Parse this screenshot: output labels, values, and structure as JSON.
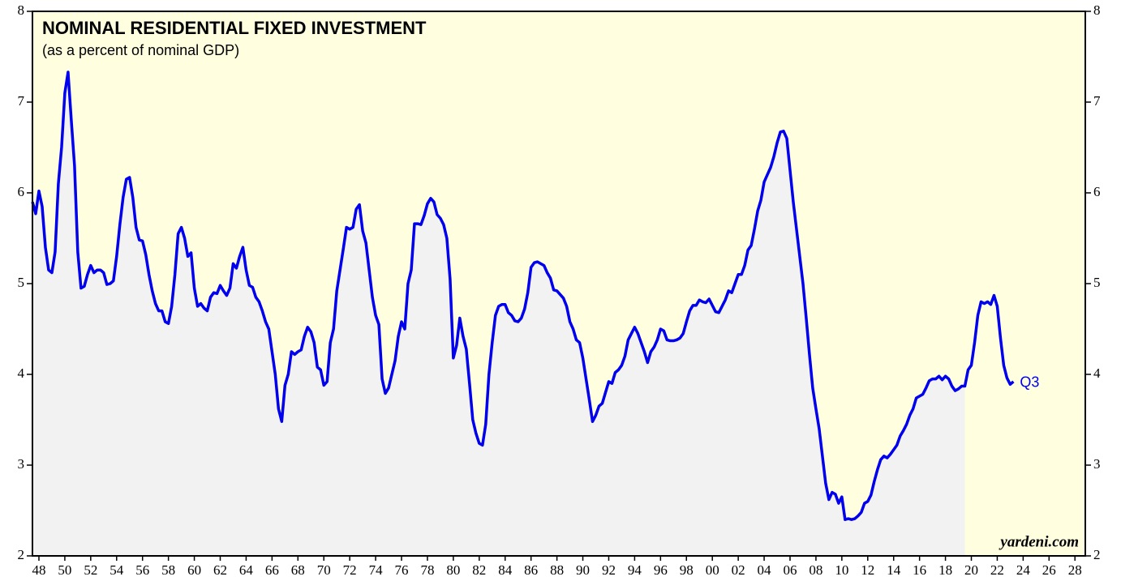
{
  "chart_data": {
    "type": "line",
    "title": "NOMINAL RESIDENTIAL FIXED INVESTMENT",
    "subtitle": "(as a percent of nominal GDP)",
    "annotations": [
      "Q3",
      "yardeni.com"
    ],
    "color": "#0000ee",
    "background": "#ffffe0",
    "shade_color": "#f2f2f2",
    "shaded_until": 2019.5,
    "xlim": [
      1947.5,
      2028.8
    ],
    "ylim": [
      2,
      8
    ],
    "yticks": [
      2,
      3,
      4,
      5,
      6,
      7,
      8
    ],
    "xticks": [
      {
        "value": 1948,
        "label": "48"
      },
      {
        "value": 1950,
        "label": "50"
      },
      {
        "value": 1952,
        "label": "52"
      },
      {
        "value": 1954,
        "label": "54"
      },
      {
        "value": 1956,
        "label": "56"
      },
      {
        "value": 1958,
        "label": "58"
      },
      {
        "value": 1960,
        "label": "60"
      },
      {
        "value": 1962,
        "label": "62"
      },
      {
        "value": 1964,
        "label": "64"
      },
      {
        "value": 1966,
        "label": "66"
      },
      {
        "value": 1968,
        "label": "68"
      },
      {
        "value": 1970,
        "label": "70"
      },
      {
        "value": 1972,
        "label": "72"
      },
      {
        "value": 1974,
        "label": "74"
      },
      {
        "value": 1976,
        "label": "76"
      },
      {
        "value": 1978,
        "label": "78"
      },
      {
        "value": 1980,
        "label": "80"
      },
      {
        "value": 1982,
        "label": "82"
      },
      {
        "value": 1984,
        "label": "84"
      },
      {
        "value": 1986,
        "label": "86"
      },
      {
        "value": 1988,
        "label": "88"
      },
      {
        "value": 1990,
        "label": "90"
      },
      {
        "value": 1992,
        "label": "92"
      },
      {
        "value": 1994,
        "label": "94"
      },
      {
        "value": 1996,
        "label": "96"
      },
      {
        "value": 1998,
        "label": "98"
      },
      {
        "value": 2000,
        "label": "00"
      },
      {
        "value": 2002,
        "label": "02"
      },
      {
        "value": 2004,
        "label": "04"
      },
      {
        "value": 2006,
        "label": "06"
      },
      {
        "value": 2008,
        "label": "08"
      },
      {
        "value": 2010,
        "label": "10"
      },
      {
        "value": 2012,
        "label": "12"
      },
      {
        "value": 2014,
        "label": "14"
      },
      {
        "value": 2016,
        "label": "16"
      },
      {
        "value": 2018,
        "label": "18"
      },
      {
        "value": 2020,
        "label": "20"
      },
      {
        "value": 2022,
        "label": "22"
      },
      {
        "value": 2024,
        "label": "24"
      },
      {
        "value": 2026,
        "label": "26"
      },
      {
        "value": 2028,
        "label": "28"
      }
    ],
    "x": [
      1947.5,
      1947.75,
      1948,
      1948.25,
      1948.5,
      1948.75,
      1949,
      1949.25,
      1949.5,
      1949.75,
      1950,
      1950.25,
      1950.5,
      1950.75,
      1951,
      1951.25,
      1951.5,
      1951.75,
      1952,
      1952.25,
      1952.5,
      1952.75,
      1953,
      1953.25,
      1953.5,
      1953.75,
      1954,
      1954.25,
      1954.5,
      1954.75,
      1955,
      1955.25,
      1955.5,
      1955.75,
      1956,
      1956.25,
      1956.5,
      1956.75,
      1957,
      1957.25,
      1957.5,
      1957.75,
      1958,
      1958.25,
      1958.5,
      1958.75,
      1959,
      1959.25,
      1959.5,
      1959.75,
      1960,
      1960.25,
      1960.5,
      1960.75,
      1961,
      1961.25,
      1961.5,
      1961.75,
      1962,
      1962.25,
      1962.5,
      1962.75,
      1963,
      1963.25,
      1963.5,
      1963.75,
      1964,
      1964.25,
      1964.5,
      1964.75,
      1965,
      1965.25,
      1965.5,
      1965.75,
      1966,
      1966.25,
      1966.5,
      1966.75,
      1967,
      1967.25,
      1967.5,
      1967.75,
      1968,
      1968.25,
      1968.5,
      1968.75,
      1969,
      1969.25,
      1969.5,
      1969.75,
      1970,
      1970.25,
      1970.5,
      1970.75,
      1971,
      1971.25,
      1971.5,
      1971.75,
      1972,
      1972.25,
      1972.5,
      1972.75,
      1973,
      1973.25,
      1973.5,
      1973.75,
      1974,
      1974.25,
      1974.5,
      1974.75,
      1975,
      1975.25,
      1975.5,
      1975.75,
      1976,
      1976.25,
      1976.5,
      1976.75,
      1977,
      1977.25,
      1977.5,
      1977.75,
      1978,
      1978.25,
      1978.5,
      1978.75,
      1979,
      1979.25,
      1979.5,
      1979.75,
      1980,
      1980.25,
      1980.5,
      1980.75,
      1981,
      1981.25,
      1981.5,
      1981.75,
      1982,
      1982.25,
      1982.5,
      1982.75,
      1983,
      1983.25,
      1983.5,
      1983.75,
      1984,
      1984.25,
      1984.5,
      1984.75,
      1985,
      1985.25,
      1985.5,
      1985.75,
      1986,
      1986.25,
      1986.5,
      1986.75,
      1987,
      1987.25,
      1987.5,
      1987.75,
      1988,
      1988.25,
      1988.5,
      1988.75,
      1989,
      1989.25,
      1989.5,
      1989.75,
      1990,
      1990.25,
      1990.5,
      1990.75,
      1991,
      1991.25,
      1991.5,
      1991.75,
      1992,
      1992.25,
      1992.5,
      1992.75,
      1993,
      1993.25,
      1993.5,
      1993.75,
      1994,
      1994.25,
      1994.5,
      1994.75,
      1995,
      1995.25,
      1995.5,
      1995.75,
      1996,
      1996.25,
      1996.5,
      1996.75,
      1997,
      1997.25,
      1997.5,
      1997.75,
      1998,
      1998.25,
      1998.5,
      1998.75,
      1999,
      1999.25,
      1999.5,
      1999.75,
      2000,
      2000.25,
      2000.5,
      2000.75,
      2001,
      2001.25,
      2001.5,
      2001.75,
      2002,
      2002.25,
      2002.5,
      2002.75,
      2003,
      2003.25,
      2003.5,
      2003.75,
      2004,
      2004.25,
      2004.5,
      2004.75,
      2005,
      2005.25,
      2005.5,
      2005.75,
      2006,
      2006.25,
      2006.5,
      2006.75,
      2007,
      2007.25,
      2007.5,
      2007.75,
      2008,
      2008.25,
      2008.5,
      2008.75,
      2009,
      2009.25,
      2009.5,
      2009.75,
      2010,
      2010.25,
      2010.5,
      2010.75,
      2011,
      2011.25,
      2011.5,
      2011.75,
      2012,
      2012.25,
      2012.5,
      2012.75,
      2013,
      2013.25,
      2013.5,
      2013.75,
      2014,
      2014.25,
      2014.5,
      2014.75,
      2015,
      2015.25,
      2015.5,
      2015.75,
      2016,
      2016.25,
      2016.5,
      2016.75,
      2017,
      2017.25,
      2017.5,
      2017.75,
      2018,
      2018.25,
      2018.5,
      2018.75,
      2019,
      2019.25,
      2019.5,
      2019.75,
      2020,
      2020.25,
      2020.5,
      2020.75,
      2021,
      2021.25,
      2021.5,
      2021.75,
      2022,
      2022.25,
      2022.5,
      2022.75,
      2023,
      2023.25
    ],
    "values": [
      5.9,
      5.77,
      6.02,
      5.85,
      5.4,
      5.15,
      5.12,
      5.35,
      6.1,
      6.5,
      7.1,
      7.33,
      6.8,
      6.3,
      5.35,
      4.95,
      4.97,
      5.1,
      5.2,
      5.12,
      5.15,
      5.15,
      5.12,
      4.99,
      5.0,
      5.03,
      5.3,
      5.65,
      5.95,
      6.15,
      6.17,
      5.95,
      5.62,
      5.48,
      5.47,
      5.32,
      5.1,
      4.92,
      4.78,
      4.7,
      4.7,
      4.58,
      4.56,
      4.75,
      5.1,
      5.55,
      5.62,
      5.5,
      5.3,
      5.34,
      4.95,
      4.75,
      4.78,
      4.73,
      4.7,
      4.85,
      4.9,
      4.89,
      4.98,
      4.92,
      4.87,
      4.95,
      5.22,
      5.17,
      5.3,
      5.4,
      5.15,
      4.98,
      4.96,
      4.85,
      4.8,
      4.7,
      4.58,
      4.5,
      4.25,
      4.0,
      3.62,
      3.48,
      3.88,
      4.0,
      4.25,
      4.22,
      4.25,
      4.27,
      4.42,
      4.52,
      4.47,
      4.35,
      4.08,
      4.05,
      3.88,
      3.92,
      4.35,
      4.5,
      4.92,
      5.15,
      5.38,
      5.62,
      5.6,
      5.62,
      5.82,
      5.87,
      5.58,
      5.45,
      5.15,
      4.85,
      4.65,
      4.55,
      3.95,
      3.79,
      3.85,
      4.0,
      4.15,
      4.42,
      4.58,
      4.5,
      5.0,
      5.15,
      5.66,
      5.66,
      5.65,
      5.75,
      5.88,
      5.94,
      5.9,
      5.76,
      5.72,
      5.65,
      5.5,
      5.05,
      4.18,
      4.32,
      4.62,
      4.42,
      4.28,
      3.9,
      3.5,
      3.35,
      3.24,
      3.22,
      3.45,
      4.0,
      4.35,
      4.65,
      4.75,
      4.77,
      4.77,
      4.68,
      4.65,
      4.59,
      4.58,
      4.62,
      4.72,
      4.9,
      5.18,
      5.23,
      5.24,
      5.22,
      5.2,
      5.12,
      5.06,
      4.93,
      4.92,
      4.88,
      4.84,
      4.75,
      4.58,
      4.5,
      4.38,
      4.35,
      4.18,
      3.95,
      3.72,
      3.48,
      3.55,
      3.65,
      3.68,
      3.8,
      3.92,
      3.9,
      4.02,
      4.05,
      4.1,
      4.2,
      4.38,
      4.45,
      4.52,
      4.45,
      4.35,
      4.25,
      4.13,
      4.25,
      4.3,
      4.38,
      4.5,
      4.48,
      4.38,
      4.37,
      4.37,
      4.38,
      4.4,
      4.45,
      4.58,
      4.7,
      4.76,
      4.76,
      4.82,
      4.8,
      4.79,
      4.83,
      4.76,
      4.69,
      4.68,
      4.75,
      4.82,
      4.92,
      4.9,
      5.0,
      5.1,
      5.1,
      5.2,
      5.37,
      5.42,
      5.6,
      5.8,
      5.92,
      6.12,
      6.2,
      6.28,
      6.4,
      6.55,
      6.67,
      6.68,
      6.6,
      6.25,
      5.9,
      5.6,
      5.3,
      5.0,
      4.62,
      4.22,
      3.85,
      3.62,
      3.4,
      3.1,
      2.8,
      2.62,
      2.7,
      2.68,
      2.58,
      2.65,
      2.4,
      2.41,
      2.4,
      2.41,
      2.44,
      2.48,
      2.58,
      2.6,
      2.67,
      2.82,
      2.95,
      3.06,
      3.1,
      3.08,
      3.12,
      3.17,
      3.22,
      3.32,
      3.38,
      3.45,
      3.55,
      3.62,
      3.74,
      3.76,
      3.78,
      3.85,
      3.93,
      3.95,
      3.95,
      3.98,
      3.94,
      3.98,
      3.95,
      3.87,
      3.82,
      3.84,
      3.87,
      3.87,
      4.05,
      4.1,
      4.35,
      4.65,
      4.8,
      4.78,
      4.8,
      4.77,
      4.87,
      4.75,
      4.4,
      4.1,
      3.96,
      3.89,
      3.92
    ]
  }
}
